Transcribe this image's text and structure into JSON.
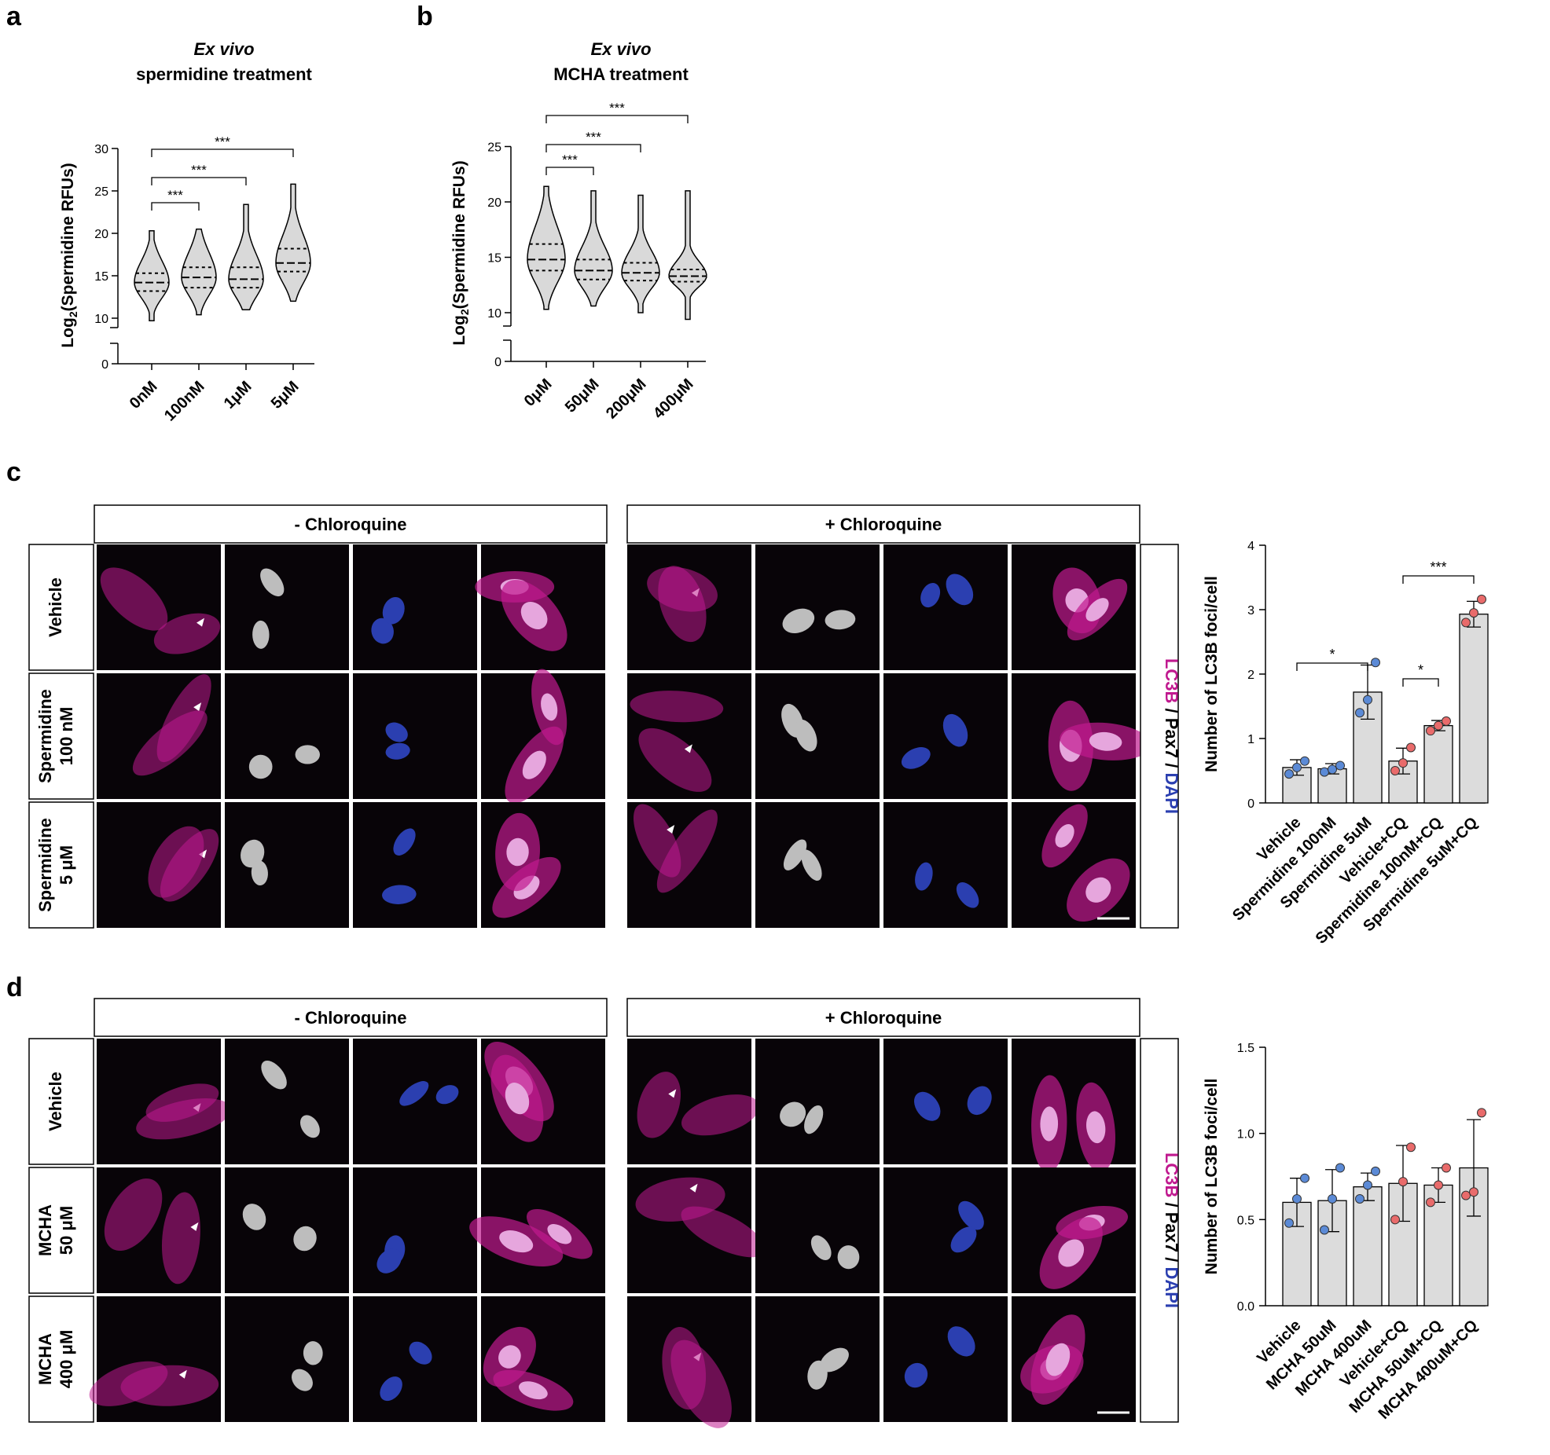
{
  "panels": {
    "a": {
      "letter": "a",
      "title_italic": "Ex vivo",
      "title": "spermidine treatment",
      "ylabel_prefix": "Log",
      "ylabel_sub": "2",
      "ylabel_main": "(Spermidine RFUs)",
      "sig": [
        "***",
        "***",
        "***"
      ]
    },
    "b": {
      "letter": "b",
      "title_italic": "Ex vivo",
      "title": "MCHA treatment",
      "ylabel_prefix": "Log",
      "ylabel_sub": "2",
      "ylabel_main": "(Spermidine RFUs)",
      "sig": [
        "***",
        "***",
        "***"
      ]
    },
    "c": {
      "letter": "c",
      "headers": [
        "- Chloroquine",
        "+ Chloroquine"
      ],
      "rows": [
        "Vehicle",
        "Spermidine\n100 nM",
        "Spermidine\n5 μM"
      ],
      "channels": [
        "LC3B",
        " / Pax7 / ",
        "DAPI"
      ],
      "ylabel": "Number of LC3B foci/cell",
      "sig": [
        "*",
        "***",
        "*"
      ]
    },
    "d": {
      "letter": "d",
      "headers": [
        "- Chloroquine",
        "+ Chloroquine"
      ],
      "rows": [
        "Vehicle",
        "MCHA\n50 μM",
        "MCHA\n400 μM"
      ],
      "channels": [
        "LC3B",
        " / Pax7 / ",
        "DAPI"
      ],
      "ylabel": "Number of LC3B foci/cell"
    }
  },
  "colors": {
    "violin_fill": "#d9d9d9",
    "bar_fill": "#dcdcdc",
    "dot_blue": "#5b8ad6",
    "dot_red": "#e96b6b",
    "lc3b": "#c0198f",
    "dapi": "#2b3fb0",
    "micrograph_bg": "#080408"
  },
  "chart_data": [
    {
      "id": "a",
      "type": "violin",
      "categories": [
        "0nM",
        "100nM",
        "1μM",
        "5μM"
      ],
      "ylabel": "Log2(Spermidine RFUs)",
      "yticks": [
        0,
        10,
        15,
        20,
        25,
        30
      ],
      "axis_break": true,
      "series": [
        {
          "category": "0nM",
          "min": 9.7,
          "q1": 13.2,
          "median": 14.2,
          "q3": 15.3,
          "max": 20.3
        },
        {
          "category": "100nM",
          "min": 10.4,
          "q1": 13.6,
          "median": 14.8,
          "q3": 16.0,
          "max": 20.5
        },
        {
          "category": "1μM",
          "min": 11.0,
          "q1": 13.6,
          "median": 14.6,
          "q3": 16.0,
          "max": 23.4
        },
        {
          "category": "5μM",
          "min": 12.0,
          "q1": 15.5,
          "median": 16.5,
          "q3": 18.2,
          "max": 25.8
        }
      ],
      "comparisons": [
        {
          "from": "0nM",
          "to": "100nM",
          "label": "***"
        },
        {
          "from": "0nM",
          "to": "1μM",
          "label": "***"
        },
        {
          "from": "0nM",
          "to": "5μM",
          "label": "***"
        }
      ]
    },
    {
      "id": "b",
      "type": "violin",
      "categories": [
        "0μM",
        "50μM",
        "200μM",
        "400μM"
      ],
      "ylabel": "Log2(Spermidine RFUs)",
      "yticks": [
        0,
        10,
        15,
        20,
        25
      ],
      "axis_break": true,
      "series": [
        {
          "category": "0μM",
          "min": 10.3,
          "q1": 13.8,
          "median": 14.8,
          "q3": 16.2,
          "max": 21.4
        },
        {
          "category": "50μM",
          "min": 10.6,
          "q1": 13.0,
          "median": 13.8,
          "q3": 14.8,
          "max": 21.0
        },
        {
          "category": "200μM",
          "min": 10.0,
          "q1": 12.9,
          "median": 13.6,
          "q3": 14.5,
          "max": 20.6
        },
        {
          "category": "400μM",
          "min": 9.4,
          "q1": 12.8,
          "median": 13.3,
          "q3": 13.9,
          "max": 21.0
        }
      ],
      "comparisons": [
        {
          "from": "0μM",
          "to": "50μM",
          "label": "***"
        },
        {
          "from": "0μM",
          "to": "200μM",
          "label": "***"
        },
        {
          "from": "0μM",
          "to": "400μM",
          "label": "***"
        }
      ]
    },
    {
      "id": "c",
      "type": "bar",
      "categories": [
        "Vehicle",
        "Spermidine 100nM",
        "Spermidine 5uM",
        "Vehicle+CQ",
        "Spermidine 100nM+CQ",
        "Spermidine 5uM+CQ"
      ],
      "ylabel": "Number of LC3B foci/cell",
      "ylim": [
        0,
        4
      ],
      "yticks": [
        0,
        1,
        2,
        3,
        4
      ],
      "values": [
        0.55,
        0.53,
        1.72,
        0.65,
        1.2,
        2.93
      ],
      "errors": [
        0.12,
        0.08,
        0.42,
        0.2,
        0.08,
        0.2
      ],
      "points": [
        [
          0.45,
          0.55,
          0.65
        ],
        [
          0.48,
          0.52,
          0.58
        ],
        [
          1.4,
          1.6,
          2.18
        ],
        [
          0.5,
          0.62,
          0.86
        ],
        [
          1.12,
          1.2,
          1.27
        ],
        [
          2.8,
          2.95,
          3.16
        ]
      ],
      "point_colors": [
        "blue",
        "blue",
        "blue",
        "red",
        "red",
        "red"
      ],
      "comparisons": [
        {
          "from": 0,
          "to": 2,
          "label": "*"
        },
        {
          "from": 3,
          "to": 5,
          "label": "***"
        },
        {
          "from": 3,
          "to": 4,
          "label": "*"
        }
      ]
    },
    {
      "id": "d",
      "type": "bar",
      "categories": [
        "Vehicle",
        "MCHA 50uM",
        "MCHA 400uM",
        "Vehicle+CQ",
        "MCHA 50uM+CQ",
        "MCHA 400uM+CQ"
      ],
      "ylabel": "Number of LC3B foci/cell",
      "ylim": [
        0,
        1.5
      ],
      "yticks": [
        0.0,
        0.5,
        1.0,
        1.5
      ],
      "values": [
        0.6,
        0.61,
        0.69,
        0.71,
        0.7,
        0.8
      ],
      "errors": [
        0.14,
        0.18,
        0.08,
        0.22,
        0.1,
        0.28
      ],
      "points": [
        [
          0.48,
          0.62,
          0.74
        ],
        [
          0.44,
          0.62,
          0.8
        ],
        [
          0.62,
          0.7,
          0.78
        ],
        [
          0.5,
          0.72,
          0.92
        ],
        [
          0.6,
          0.7,
          0.8
        ],
        [
          0.64,
          0.66,
          1.12
        ]
      ],
      "point_colors": [
        "blue",
        "blue",
        "blue",
        "red",
        "red",
        "red"
      ]
    }
  ]
}
